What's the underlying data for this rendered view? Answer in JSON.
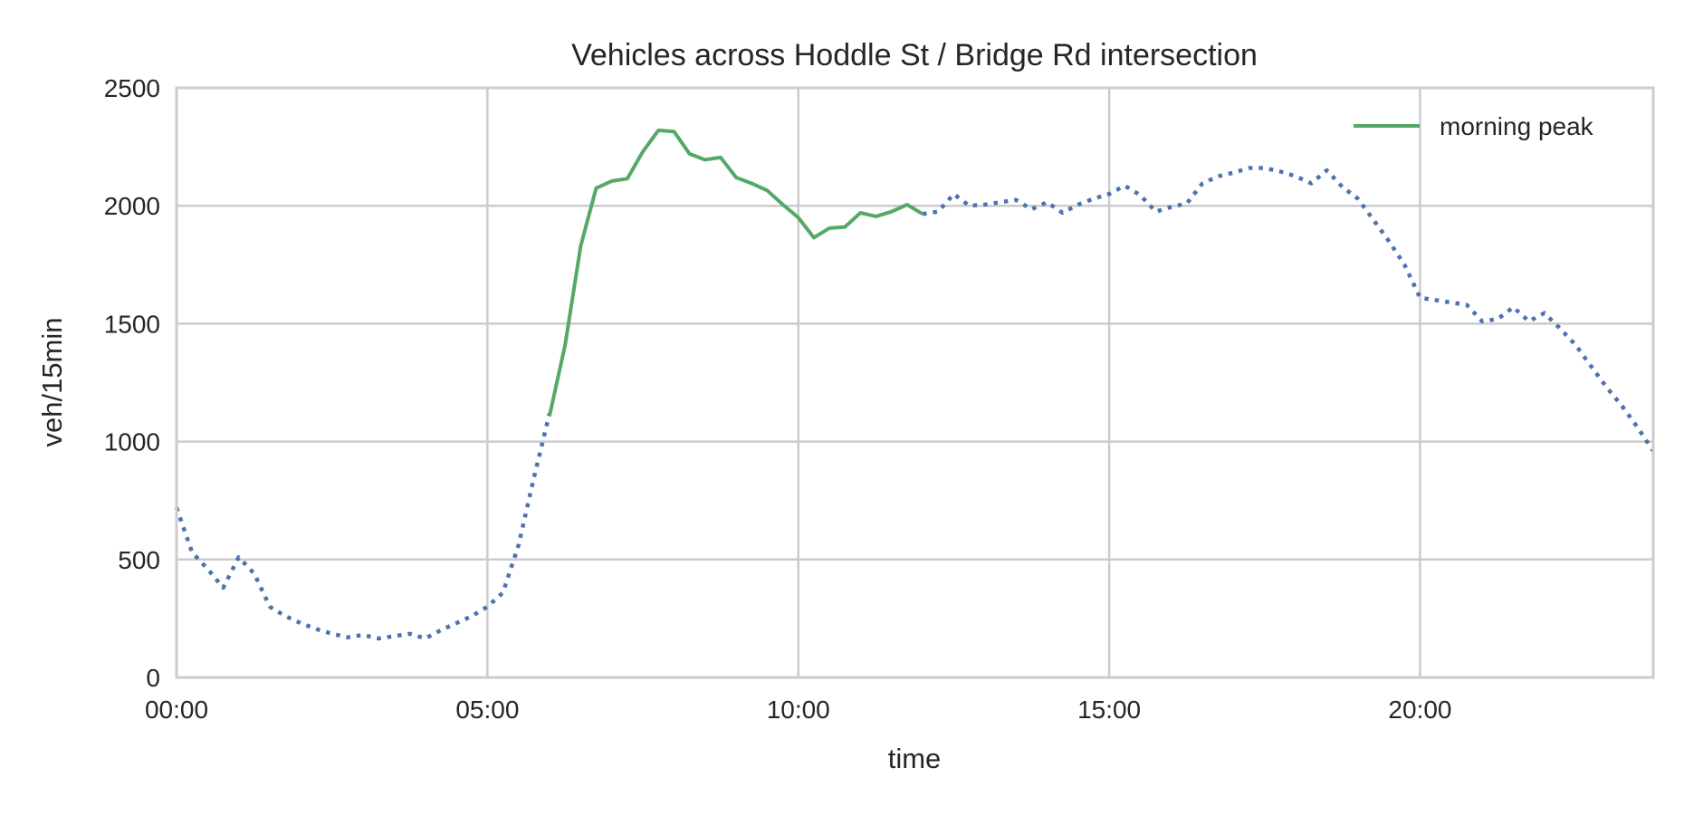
{
  "chart_data": {
    "type": "line",
    "title": "Vehicles across Hoddle St / Bridge Rd intersection",
    "xlabel": "time",
    "ylabel": "veh/15min",
    "xlim_hours": [
      0,
      23.75
    ],
    "ylim": [
      0,
      2500
    ],
    "x_ticks": [
      "00:00",
      "05:00",
      "10:00",
      "15:00",
      "20:00"
    ],
    "y_ticks": [
      0,
      500,
      1000,
      1500,
      2000,
      2500
    ],
    "grid": true,
    "legend_position": "top-right",
    "series": [
      {
        "name": "",
        "color": "#4c72b0",
        "style": "dotted",
        "x": [
          "00:00",
          "00:15",
          "00:30",
          "00:45",
          "01:00",
          "01:15",
          "01:30",
          "01:45",
          "02:00",
          "02:15",
          "02:30",
          "02:45",
          "03:00",
          "03:15",
          "03:30",
          "03:45",
          "04:00",
          "04:15",
          "04:30",
          "04:45",
          "05:00",
          "05:15",
          "05:30",
          "05:45",
          "06:00"
        ],
        "values": [
          720,
          530,
          460,
          380,
          510,
          440,
          300,
          260,
          230,
          205,
          185,
          170,
          180,
          165,
          175,
          185,
          165,
          200,
          230,
          260,
          300,
          360,
          560,
          850,
          1120
        ]
      },
      {
        "name": "morning peak",
        "color": "#55a868",
        "style": "solid",
        "x": [
          "06:00",
          "06:15",
          "06:30",
          "06:45",
          "07:00",
          "07:15",
          "07:30",
          "07:45",
          "08:00",
          "08:15",
          "08:30",
          "08:45",
          "09:00",
          "09:15",
          "09:30",
          "09:45",
          "10:00",
          "10:15",
          "10:30",
          "10:45",
          "11:00",
          "11:15",
          "11:30",
          "11:45",
          "12:00"
        ],
        "values": [
          1110,
          1410,
          1830,
          2075,
          2105,
          2115,
          2230,
          2320,
          2315,
          2220,
          2195,
          2205,
          2120,
          2095,
          2065,
          2005,
          1950,
          1865,
          1905,
          1910,
          1970,
          1955,
          1975,
          2005,
          1965
        ]
      },
      {
        "name": "",
        "color": "#4c72b0",
        "style": "dotted",
        "x": [
          "12:00",
          "12:15",
          "12:30",
          "12:45",
          "13:00",
          "13:15",
          "13:30",
          "13:45",
          "14:00",
          "14:15",
          "14:30",
          "14:45",
          "15:00",
          "15:15",
          "15:30",
          "15:45",
          "16:00",
          "16:15",
          "16:30",
          "16:45",
          "17:00",
          "17:15",
          "17:30",
          "17:45",
          "18:00",
          "18:15",
          "18:30",
          "18:45",
          "19:00",
          "19:15",
          "19:30",
          "19:45",
          "20:00",
          "20:15",
          "20:30",
          "20:45",
          "21:00",
          "21:15",
          "21:30",
          "21:45",
          "22:00",
          "22:15",
          "22:30",
          "22:45",
          "23:00",
          "23:15",
          "23:30",
          "23:45"
        ],
        "values": [
          1965,
          1975,
          2050,
          2000,
          2005,
          2015,
          2025,
          1985,
          2015,
          1970,
          2005,
          2030,
          2050,
          2085,
          2045,
          1975,
          1995,
          2010,
          2095,
          2125,
          2140,
          2160,
          2160,
          2145,
          2125,
          2095,
          2150,
          2080,
          2030,
          1940,
          1850,
          1750,
          1610,
          1600,
          1590,
          1580,
          1510,
          1520,
          1570,
          1510,
          1545,
          1480,
          1410,
          1320,
          1230,
          1150,
          1060,
          960
        ]
      }
    ]
  }
}
